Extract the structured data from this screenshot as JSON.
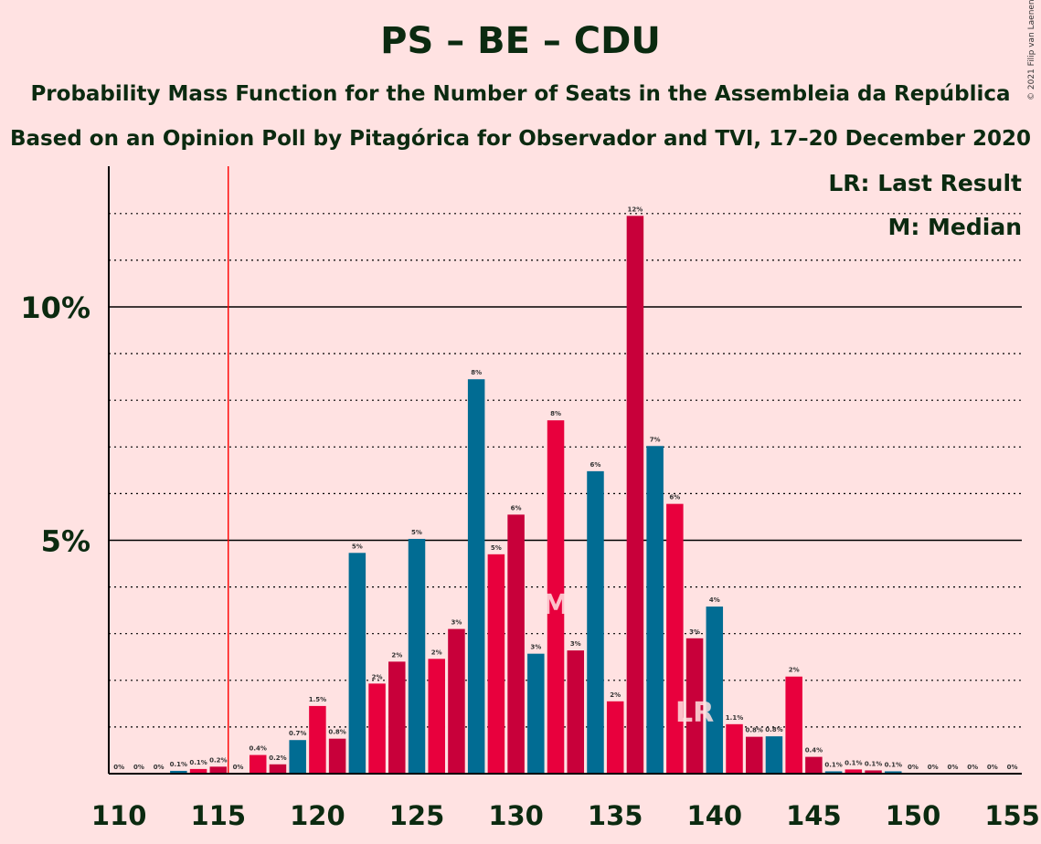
{
  "title": "PS – BE – CDU",
  "subtitle1": "Probability Mass Function for the Number of Seats in the Assembleia da República",
  "subtitle2": "Based on an Opinion Poll by Pitagórica for Observador and TVI, 17–20 December 2020",
  "copyright": "© 2021 Filip van Laenen",
  "legend": {
    "last_result": "LR: Last Result",
    "median": "M: Median"
  },
  "chart_data": {
    "type": "bar",
    "xlim": [
      110,
      155
    ],
    "ylim": [
      0,
      13
    ],
    "x_ticks": [
      "110",
      "115",
      "120",
      "125",
      "130",
      "135",
      "140",
      "145",
      "150",
      "155"
    ],
    "y_ticks": [
      {
        "value": 5,
        "label": "5%"
      },
      {
        "value": 10,
        "label": "10%"
      }
    ],
    "grid": "dotted every 1%, solid at 5% and 10%",
    "majority_line": 116,
    "median": 132,
    "median_marker": "M",
    "last_result": 139,
    "last_result_marker": "LR",
    "colors": {
      "red": "#C8003A",
      "red_bright": "#E8003D",
      "blue": "#016C93",
      "majority_line": "#FF0000",
      "background": "#FFE2E2"
    },
    "bars": [
      {
        "seats": 110,
        "value": 0,
        "label": "0%",
        "color": "red_bright"
      },
      {
        "seats": 111,
        "value": 0,
        "label": "0%",
        "color": "red"
      },
      {
        "seats": 112,
        "value": 0,
        "label": "0%",
        "color": "red"
      },
      {
        "seats": 113,
        "value": 0.06,
        "label": "0.1%",
        "color": "blue"
      },
      {
        "seats": 114,
        "value": 0.1,
        "label": "0.1%",
        "color": "red_bright"
      },
      {
        "seats": 115,
        "value": 0.15,
        "label": "0.2%",
        "color": "red"
      },
      {
        "seats": 116,
        "value": 0,
        "label": "0%",
        "color": "blue"
      },
      {
        "seats": 117,
        "value": 0.4,
        "label": "0.4%",
        "color": "red_bright"
      },
      {
        "seats": 118,
        "value": 0.2,
        "label": "0.2%",
        "color": "red"
      },
      {
        "seats": 119,
        "value": 0.72,
        "label": "0.7%",
        "color": "blue"
      },
      {
        "seats": 120,
        "value": 1.45,
        "label": "1.5%",
        "color": "red_bright"
      },
      {
        "seats": 121,
        "value": 0.75,
        "label": "0.8%",
        "color": "red"
      },
      {
        "seats": 122,
        "value": 4.73,
        "label": "5%",
        "color": "blue"
      },
      {
        "seats": 123,
        "value": 1.93,
        "label": "2%",
        "color": "red_bright"
      },
      {
        "seats": 124,
        "value": 2.4,
        "label": "2%",
        "color": "red"
      },
      {
        "seats": 125,
        "value": 5.03,
        "label": "5%",
        "color": "blue"
      },
      {
        "seats": 126,
        "value": 2.46,
        "label": "2%",
        "color": "red_bright"
      },
      {
        "seats": 127,
        "value": 3.1,
        "label": "3%",
        "color": "red"
      },
      {
        "seats": 128,
        "value": 8.45,
        "label": "8%",
        "color": "blue"
      },
      {
        "seats": 129,
        "value": 4.7,
        "label": "5%",
        "color": "red_bright"
      },
      {
        "seats": 130,
        "value": 5.55,
        "label": "6%",
        "color": "red"
      },
      {
        "seats": 131,
        "value": 2.57,
        "label": "3%",
        "color": "blue"
      },
      {
        "seats": 132,
        "value": 7.57,
        "label": "8%",
        "color": "red_bright"
      },
      {
        "seats": 133,
        "value": 2.64,
        "label": "3%",
        "color": "red"
      },
      {
        "seats": 134,
        "value": 6.48,
        "label": "6%",
        "color": "blue"
      },
      {
        "seats": 135,
        "value": 1.55,
        "label": "2%",
        "color": "red_bright"
      },
      {
        "seats": 136,
        "value": 11.95,
        "label": "12%",
        "color": "red"
      },
      {
        "seats": 137,
        "value": 7.02,
        "label": "7%",
        "color": "blue"
      },
      {
        "seats": 138,
        "value": 5.78,
        "label": "6%",
        "color": "red_bright"
      },
      {
        "seats": 139,
        "value": 2.9,
        "label": "3%",
        "color": "red"
      },
      {
        "seats": 140,
        "value": 3.58,
        "label": "4%",
        "color": "blue"
      },
      {
        "seats": 141,
        "value": 1.06,
        "label": "1.1%",
        "color": "red_bright"
      },
      {
        "seats": 142,
        "value": 0.79,
        "label": "0.8%",
        "color": "red"
      },
      {
        "seats": 143,
        "value": 0.8,
        "label": "0.8%",
        "color": "blue"
      },
      {
        "seats": 144,
        "value": 2.08,
        "label": "2%",
        "color": "red_bright"
      },
      {
        "seats": 145,
        "value": 0.36,
        "label": "0.4%",
        "color": "red"
      },
      {
        "seats": 146,
        "value": 0.05,
        "label": "0.1%",
        "color": "blue"
      },
      {
        "seats": 147,
        "value": 0.09,
        "label": "0.1%",
        "color": "red_bright"
      },
      {
        "seats": 148,
        "value": 0.07,
        "label": "0.1%",
        "color": "red"
      },
      {
        "seats": 149,
        "value": 0.05,
        "label": "0.1%",
        "color": "blue"
      },
      {
        "seats": 150,
        "value": 0,
        "label": "0%",
        "color": "red_bright"
      },
      {
        "seats": 151,
        "value": 0,
        "label": "0%",
        "color": "red"
      },
      {
        "seats": 152,
        "value": 0,
        "label": "0%",
        "color": "blue"
      },
      {
        "seats": 153,
        "value": 0,
        "label": "0%",
        "color": "red_bright"
      },
      {
        "seats": 154,
        "value": 0,
        "label": "0%",
        "color": "red"
      },
      {
        "seats": 155,
        "value": 0,
        "label": "0%",
        "color": "blue"
      }
    ]
  }
}
